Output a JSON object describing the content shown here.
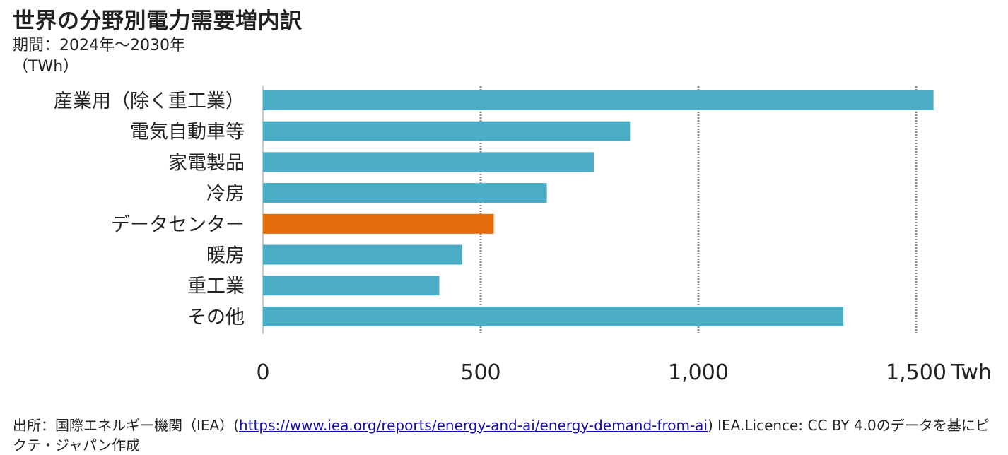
{
  "title": "世界の分野別電力需要増内訳",
  "subtitle": "期間：2024年～2030年",
  "unit_label": "（TWh）",
  "source": {
    "prefix": "出所：国際エネルギー機関（IEA）(",
    "link_text": "https://www.iea.org/reports/energy-and-ai/energy-demand-from-ai",
    "suffix": ") IEA.Licence: CC BY 4.0のデータを基にピクテ・ジャパン作成"
  },
  "colors": {
    "default_bar": "#4bacc6",
    "highlight_bar": "#e36c0a",
    "grid": "#888888"
  },
  "chart_data": {
    "type": "bar",
    "orientation": "horizontal",
    "categories": [
      "産業用（除く重工業）",
      "電気自動車等",
      "家電製品",
      "冷房",
      "データセンター",
      "暖房",
      "重工業",
      "その他"
    ],
    "values": [
      1540,
      843,
      760,
      652,
      530,
      458,
      405,
      1333
    ],
    "highlight_index": 4,
    "xlim": [
      0,
      1500
    ],
    "xticks": [
      0,
      500,
      1000,
      1500
    ],
    "xtick_labels": [
      "0",
      "500",
      "1,000",
      "1,500"
    ],
    "x_unit": "Twh",
    "grid": "vertical-dotted"
  }
}
